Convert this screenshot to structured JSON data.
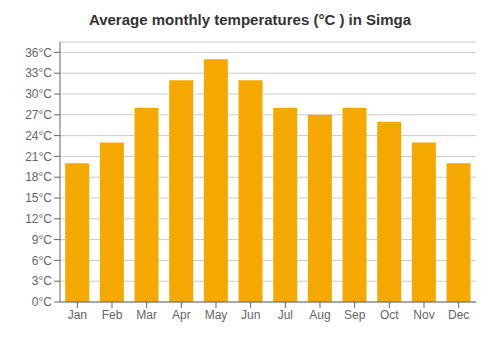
{
  "chart_data": {
    "type": "bar",
    "title": "Average monthly temperatures (°C ) in Simga",
    "categories": [
      "Jan",
      "Feb",
      "Mar",
      "Apr",
      "May",
      "Jun",
      "Jul",
      "Aug",
      "Sep",
      "Oct",
      "Nov",
      "Dec"
    ],
    "values": [
      20,
      23,
      28,
      32,
      35,
      32,
      28,
      27,
      28,
      26,
      23,
      20
    ],
    "color": "#F5A800",
    "ylim": [
      0,
      37.5
    ],
    "yticks": [
      {
        "value": 0,
        "label": "0°C"
      },
      {
        "value": 3,
        "label": "3°C"
      },
      {
        "value": 6,
        "label": "6°C"
      },
      {
        "value": 9,
        "label": "9°C"
      },
      {
        "value": 12,
        "label": "12°C"
      },
      {
        "value": 15,
        "label": "15°C"
      },
      {
        "value": 18,
        "label": "18°C"
      },
      {
        "value": 21,
        "label": "21°C"
      },
      {
        "value": 24,
        "label": "24°C"
      },
      {
        "value": 27,
        "label": "27°C"
      },
      {
        "value": 30,
        "label": "30°C"
      },
      {
        "value": 33,
        "label": "33°C"
      },
      {
        "value": 36,
        "label": "36°C"
      }
    ],
    "grid": true
  }
}
